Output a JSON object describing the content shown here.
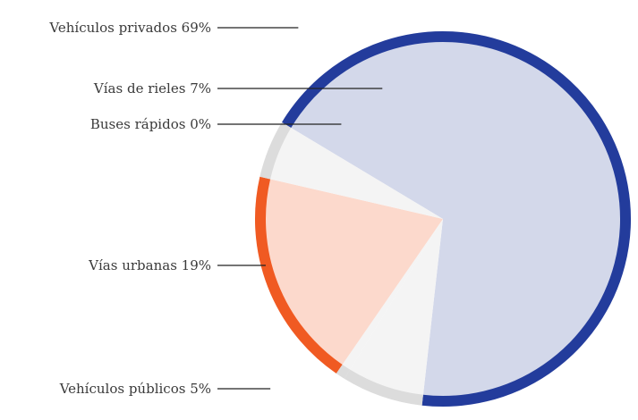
{
  "chart_data": {
    "type": "pie",
    "title": "",
    "slices": [
      {
        "name": "Vehículos privados",
        "value": 69,
        "label": "Vehículos privados 69%",
        "fill": "#d3d8ea",
        "rim": "#233c9c"
      },
      {
        "name": "Vías de rieles",
        "value": 7,
        "label": "Vías de rieles 7%",
        "fill": "#f4f4f4",
        "rim": "#dcdcdc"
      },
      {
        "name": "Buses rápidos",
        "value": 0,
        "label": "Buses rápidos 0%",
        "fill": "#f4f4f4",
        "rim": "#dcdcdc"
      },
      {
        "name": "Vías urbanas",
        "value": 19,
        "label": "Vías urbanas 19%",
        "fill": "#fcd9cc",
        "rim": "#f05a22"
      },
      {
        "name": "Vehículos públicos",
        "value": 5,
        "label": "Vehículos públicos 5%",
        "fill": "#f4f4f4",
        "rim": "#dcdcdc"
      }
    ],
    "legend": "none",
    "labels_position": "left, with leader lines"
  }
}
